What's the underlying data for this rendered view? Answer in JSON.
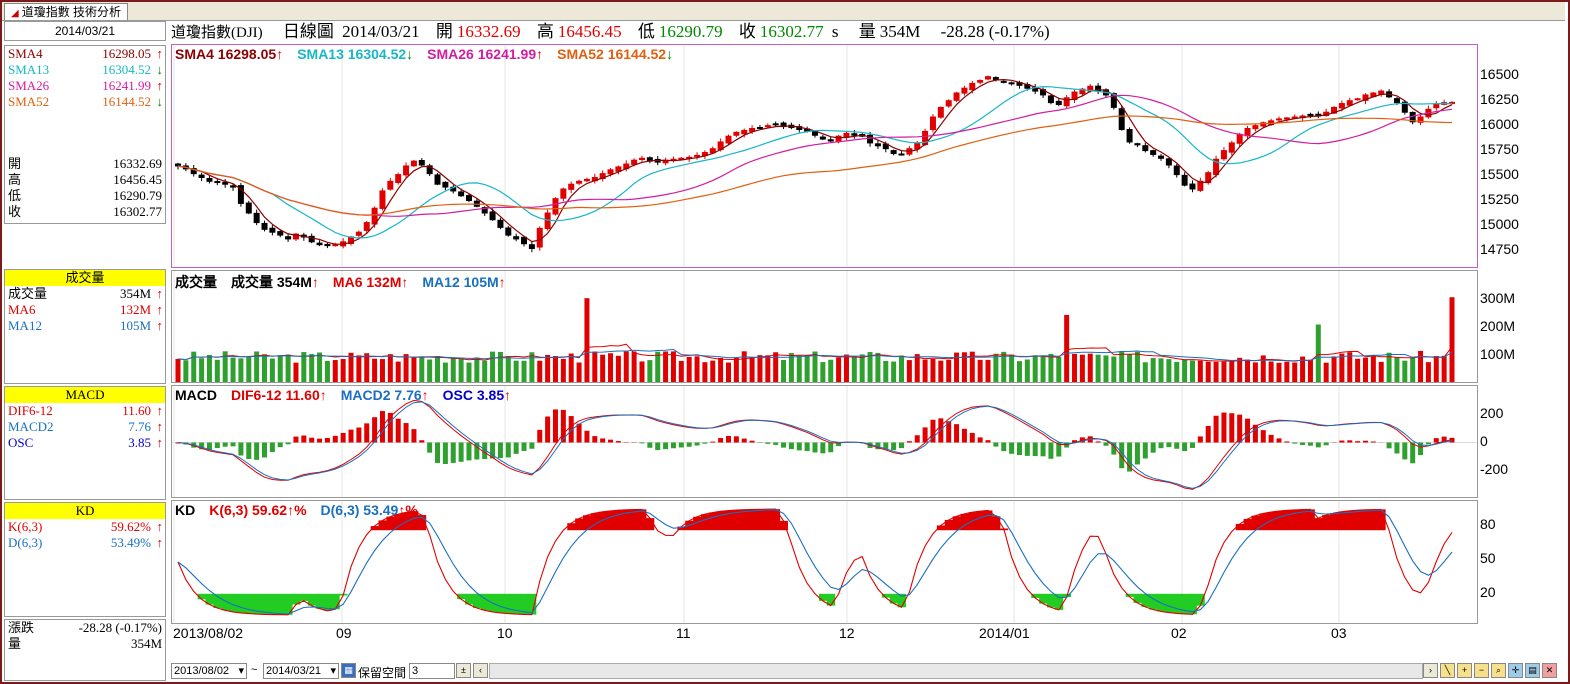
{
  "tab": {
    "label": "道瓊指數 技術分析"
  },
  "header": {
    "name": "道瓊指數(DJI)",
    "period": "日線圖",
    "date": "2014/03/21",
    "open_label": "開",
    "open": "16332.69",
    "high_label": "高",
    "high": "16456.45",
    "low_label": "低",
    "low": "16290.79",
    "close_label": "收",
    "close": "16302.77",
    "s": "s",
    "vol_label": "量",
    "vol": "354M",
    "change": "-28.28 (-0.17%)"
  },
  "left": {
    "date": "2014/03/21",
    "sma": [
      {
        "label": "SMA4",
        "value": "16298.05",
        "arrow": "↑",
        "color": "#8b0000"
      },
      {
        "label": "SMA13",
        "value": "16304.52",
        "arrow": "↓",
        "color": "#17b7c7"
      },
      {
        "label": "SMA26",
        "value": "16241.99",
        "arrow": "↑",
        "color": "#d41ca0"
      },
      {
        "label": "SMA52",
        "value": "16144.52",
        "arrow": "↓",
        "color": "#e06010"
      }
    ],
    "ohlc": [
      {
        "label": "開",
        "value": "16332.69"
      },
      {
        "label": "高",
        "value": "16456.45"
      },
      {
        "label": "低",
        "value": "16290.79"
      },
      {
        "label": "收",
        "value": "16302.77"
      }
    ],
    "vol_title": "成交量",
    "vol": [
      {
        "label": "成交量",
        "value": "354M",
        "arrow": "↑",
        "color": "#000000"
      },
      {
        "label": "MA6",
        "value": "132M",
        "arrow": "↑",
        "color": "#e00000"
      },
      {
        "label": "MA12",
        "value": "105M",
        "arrow": "↑",
        "color": "#1a6fc0"
      }
    ],
    "macd_title": "MACD",
    "macd": [
      {
        "label": "DIF6-12",
        "value": "11.60",
        "arrow": "↑",
        "color": "#e00000"
      },
      {
        "label": "MACD2",
        "value": "7.76",
        "arrow": "↑",
        "color": "#1a6fc0"
      },
      {
        "label": "OSC",
        "value": "3.85",
        "arrow": "↑",
        "color": "#0000cc"
      }
    ],
    "kd_title": "KD",
    "kd": [
      {
        "label": "K(6,3)",
        "value": "59.62%",
        "arrow": "↑",
        "color": "#e00000"
      },
      {
        "label": "D(6,3)",
        "value": "53.49%",
        "arrow": "↑",
        "color": "#1a6fc0"
      }
    ],
    "summary": [
      {
        "label": "漲跌",
        "value": "-28.28 (-0.17%)"
      },
      {
        "label": "量",
        "value": "354M"
      }
    ]
  },
  "price_panel": {
    "legend": [
      {
        "text": "SMA4 16298.05",
        "arrow": "↑",
        "color": "#8b0000",
        "arrow_color": "#e00000"
      },
      {
        "text": "SMA13 16304.52",
        "arrow": "↓",
        "color": "#17b7c7",
        "arrow_color": "#008800"
      },
      {
        "text": "SMA26 16241.99",
        "arrow": "↑",
        "color": "#d41ca0",
        "arrow_color": "#e00000"
      },
      {
        "text": "SMA52 16144.52",
        "arrow": "↓",
        "color": "#e06010",
        "arrow_color": "#008800"
      }
    ],
    "axis": [
      "16500",
      "16250",
      "16000",
      "15750",
      "15500",
      "15250",
      "15000",
      "14750"
    ]
  },
  "volume_panel": {
    "legend": [
      {
        "text": "成交量",
        "arrow": "",
        "color": "#000000",
        "arrow_color": "#000000"
      },
      {
        "text": "成交量 354M",
        "arrow": "↑",
        "color": "#000000",
        "arrow_color": "#e00000"
      },
      {
        "text": "MA6 132M",
        "arrow": "↑",
        "color": "#e00000",
        "arrow_color": "#e00000"
      },
      {
        "text": "MA12 105M",
        "arrow": "↑",
        "color": "#1a6fc0",
        "arrow_color": "#e00000"
      }
    ],
    "axis": [
      "300M",
      "200M",
      "100M"
    ]
  },
  "macd_panel": {
    "legend": [
      {
        "text": "MACD",
        "arrow": "",
        "color": "#000000",
        "arrow_color": "#000000"
      },
      {
        "text": "DIF6-12 11.60",
        "arrow": "↑",
        "color": "#e00000",
        "arrow_color": "#e00000"
      },
      {
        "text": "MACD2 7.76",
        "arrow": "↑",
        "color": "#1a6fc0",
        "arrow_color": "#e00000"
      },
      {
        "text": "OSC 3.85",
        "arrow": "↑",
        "color": "#0000cc",
        "arrow_color": "#e00000"
      }
    ],
    "axis": [
      "200",
      "0",
      "-200"
    ]
  },
  "kd_panel": {
    "legend": [
      {
        "text": "KD",
        "arrow": "",
        "color": "#000000",
        "arrow_color": "#000000"
      },
      {
        "text": "K(6,3) 59.62",
        "arrow": "↑%",
        "color": "#e00000",
        "arrow_color": "#e00000"
      },
      {
        "text": "D(6,3) 53.49",
        "arrow": "↑%",
        "color": "#1a6fc0",
        "arrow_color": "#e00000"
      }
    ],
    "axis": [
      "80",
      "50",
      "20"
    ]
  },
  "xaxis": [
    "2013/08/02",
    "09",
    "10",
    "11",
    "12",
    "2014/01",
    "02",
    "03"
  ],
  "bottom": {
    "start_date": "2013/08/02",
    "tilde": "~",
    "end_date": "2014/03/21",
    "reserve_label": "保留空間",
    "reserve_value": "3"
  },
  "chart_data": {
    "type": "candlestick",
    "ylim": [
      14650,
      16650
    ],
    "candles_trend": [
      15640,
      15610,
      15560,
      15520,
      15480,
      15470,
      15450,
      15420,
      15250,
      15150,
      15050,
      14980,
      14950,
      14920,
      14880,
      14930,
      14900,
      14850,
      14820,
      14810,
      14820,
      14850,
      14900,
      14950,
      15050,
      15200,
      15380,
      15480,
      15550,
      15640,
      15690,
      15650,
      15560,
      15450,
      15420,
      15380,
      15330,
      15280,
      15220,
      15150,
      15080,
      15000,
      14920,
      14880,
      14830,
      14780,
      14990,
      15150,
      15300,
      15400,
      15450,
      15480,
      15500,
      15520,
      15560,
      15600,
      15630,
      15660,
      15700,
      15720,
      15690,
      15680,
      15700,
      15710,
      15720,
      15730,
      15750,
      15780,
      15820,
      15890,
      15950,
      15990,
      16010,
      16030,
      16040,
      16060,
      16070,
      16050,
      16040,
      16020,
      16000,
      15960,
      15920,
      15900,
      15950,
      15980,
      15960,
      15950,
      15880,
      15850,
      15820,
      15770,
      15760,
      15820,
      15880,
      16000,
      16150,
      16250,
      16320,
      16400,
      16450,
      16500,
      16530,
      16570,
      16540,
      16520,
      16500,
      16480,
      16450,
      16420,
      16380,
      16300,
      16280,
      16350,
      16410,
      16440,
      16470,
      16420,
      16380,
      16250,
      16020,
      15890,
      15860,
      15800,
      15760,
      15720,
      15650,
      15550,
      15440,
      15400,
      15480,
      15570,
      15710,
      15800,
      15880,
      15970,
      16030,
      16060,
      16090,
      16110,
      16130,
      16140,
      16150,
      16160,
      16170,
      16160,
      16200,
      16250,
      16290,
      16320,
      16340,
      16380,
      16400,
      16420,
      16360,
      16300,
      16200,
      16100,
      16150,
      16230,
      16280,
      16300,
      16302
    ],
    "volume_ylim": [
      0,
      380
    ],
    "macd_ylim": [
      -320,
      320
    ],
    "kd_ylim": [
      0,
      100
    ]
  }
}
